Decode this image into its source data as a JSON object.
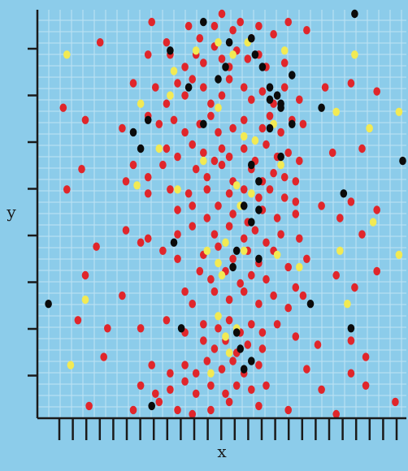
{
  "chart_data": {
    "type": "scatter",
    "title": "",
    "xlabel": "x",
    "ylabel": "y",
    "x_tick_count": 26,
    "y_tick_count": 8,
    "xlim": [
      0,
      100
    ],
    "ylim": [
      0,
      100
    ],
    "grid": true,
    "legend": "none",
    "colors": {
      "background": "#8cccea",
      "grid": "#bfe3f4",
      "axis": "#1a1a1a",
      "red": "#e0262b",
      "yellow": "#f2ea54",
      "black": "#0b0b0b"
    },
    "series": [
      {
        "color_key": "red",
        "points": [
          [
            31,
            97
          ],
          [
            35,
            92
          ],
          [
            41,
            96
          ],
          [
            44,
            93
          ],
          [
            48,
            96
          ],
          [
            50,
            99
          ],
          [
            53,
            95
          ],
          [
            55,
            97
          ],
          [
            58,
            93
          ],
          [
            60,
            96
          ],
          [
            64,
            94
          ],
          [
            68,
            97
          ],
          [
            73,
            95
          ],
          [
            17,
            92
          ],
          [
            30,
            89
          ],
          [
            36,
            89
          ],
          [
            40,
            86
          ],
          [
            43,
            89
          ],
          [
            45,
            87
          ],
          [
            48,
            91
          ],
          [
            50,
            88
          ],
          [
            52,
            86
          ],
          [
            54,
            90
          ],
          [
            57,
            88
          ],
          [
            60,
            89
          ],
          [
            62,
            86
          ],
          [
            67,
            87
          ],
          [
            26,
            82
          ],
          [
            32,
            81
          ],
          [
            35,
            77
          ],
          [
            38,
            82
          ],
          [
            40,
            79
          ],
          [
            42,
            83
          ],
          [
            45,
            81
          ],
          [
            47,
            77
          ],
          [
            50,
            79
          ],
          [
            52,
            83
          ],
          [
            56,
            81
          ],
          [
            58,
            78
          ],
          [
            61,
            80
          ],
          [
            64,
            77
          ],
          [
            67,
            81
          ],
          [
            71,
            78
          ],
          [
            78,
            81
          ],
          [
            85,
            82
          ],
          [
            92,
            80
          ],
          [
            7,
            76
          ],
          [
            13,
            73
          ],
          [
            23,
            71
          ],
          [
            30,
            74
          ],
          [
            33,
            72
          ],
          [
            37,
            73
          ],
          [
            40,
            70
          ],
          [
            44,
            72
          ],
          [
            47,
            74
          ],
          [
            49,
            70
          ],
          [
            53,
            71
          ],
          [
            56,
            73
          ],
          [
            61,
            71
          ],
          [
            63,
            74
          ],
          [
            66,
            70
          ],
          [
            69,
            73
          ],
          [
            72,
            72
          ],
          [
            35,
            66
          ],
          [
            38,
            64
          ],
          [
            42,
            67
          ],
          [
            45,
            65
          ],
          [
            48,
            63
          ],
          [
            50,
            66
          ],
          [
            52,
            64
          ],
          [
            56,
            66
          ],
          [
            59,
            63
          ],
          [
            62,
            67
          ],
          [
            65,
            64
          ],
          [
            68,
            65
          ],
          [
            71,
            63
          ],
          [
            80,
            65
          ],
          [
            88,
            66
          ],
          [
            12,
            61
          ],
          [
            26,
            62
          ],
          [
            30,
            59
          ],
          [
            34,
            62
          ],
          [
            43,
            61
          ],
          [
            46,
            59
          ],
          [
            50,
            62
          ],
          [
            53,
            58
          ],
          [
            58,
            61
          ],
          [
            61,
            58
          ],
          [
            64,
            60
          ],
          [
            67,
            59
          ],
          [
            70,
            58
          ],
          [
            8,
            56
          ],
          [
            24,
            58
          ],
          [
            30,
            55
          ],
          [
            36,
            56
          ],
          [
            41,
            55
          ],
          [
            46,
            56
          ],
          [
            52,
            55
          ],
          [
            56,
            56
          ],
          [
            60,
            54
          ],
          [
            63,
            56
          ],
          [
            67,
            54
          ],
          [
            70,
            53
          ],
          [
            38,
            51
          ],
          [
            42,
            52
          ],
          [
            46,
            49
          ],
          [
            49,
            52
          ],
          [
            53,
            50
          ],
          [
            57,
            48
          ],
          [
            61,
            51
          ],
          [
            65,
            49
          ],
          [
            70,
            50
          ],
          [
            77,
            52
          ],
          [
            82,
            49
          ],
          [
            85,
            53
          ],
          [
            92,
            51
          ],
          [
            24,
            46
          ],
          [
            30,
            44
          ],
          [
            38,
            45
          ],
          [
            42,
            47
          ],
          [
            48,
            45
          ],
          [
            52,
            47
          ],
          [
            56,
            44
          ],
          [
            59,
            46
          ],
          [
            62,
            43
          ],
          [
            66,
            45
          ],
          [
            71,
            44
          ],
          [
            88,
            45
          ],
          [
            16,
            42
          ],
          [
            28,
            43
          ],
          [
            34,
            41
          ],
          [
            38,
            39
          ],
          [
            45,
            40
          ],
          [
            49,
            42
          ],
          [
            53,
            39
          ],
          [
            57,
            41
          ],
          [
            60,
            38
          ],
          [
            64,
            41
          ],
          [
            68,
            37
          ],
          [
            73,
            39
          ],
          [
            13,
            35
          ],
          [
            44,
            36
          ],
          [
            47,
            34
          ],
          [
            51,
            36
          ],
          [
            55,
            33
          ],
          [
            58,
            35
          ],
          [
            62,
            34
          ],
          [
            70,
            32
          ],
          [
            81,
            35
          ],
          [
            86,
            32
          ],
          [
            92,
            36
          ],
          [
            23,
            30
          ],
          [
            40,
            31
          ],
          [
            42,
            28
          ],
          [
            48,
            31
          ],
          [
            52,
            29
          ],
          [
            56,
            31
          ],
          [
            60,
            28
          ],
          [
            64,
            30
          ],
          [
            68,
            27
          ],
          [
            72,
            30
          ],
          [
            11,
            24
          ],
          [
            19,
            22
          ],
          [
            28,
            22
          ],
          [
            35,
            24
          ],
          [
            40,
            21
          ],
          [
            45,
            23
          ],
          [
            49,
            22
          ],
          [
            52,
            24
          ],
          [
            55,
            21
          ],
          [
            58,
            23
          ],
          [
            61,
            21
          ],
          [
            65,
            23
          ],
          [
            70,
            20
          ],
          [
            45,
            19
          ],
          [
            48,
            17
          ],
          [
            51,
            19
          ],
          [
            54,
            16
          ],
          [
            57,
            18
          ],
          [
            61,
            17
          ],
          [
            76,
            18
          ],
          [
            85,
            19
          ],
          [
            89,
            15
          ],
          [
            18,
            15
          ],
          [
            31,
            13
          ],
          [
            36,
            11
          ],
          [
            40,
            13
          ],
          [
            43,
            11
          ],
          [
            46,
            14
          ],
          [
            50,
            12
          ],
          [
            53,
            14
          ],
          [
            56,
            11
          ],
          [
            60,
            13
          ],
          [
            73,
            12
          ],
          [
            85,
            11
          ],
          [
            28,
            8
          ],
          [
            32,
            6
          ],
          [
            36,
            7
          ],
          [
            40,
            9
          ],
          [
            43,
            6
          ],
          [
            47,
            8
          ],
          [
            51,
            6
          ],
          [
            54,
            8
          ],
          [
            58,
            7
          ],
          [
            62,
            8
          ],
          [
            77,
            7
          ],
          [
            89,
            8
          ],
          [
            14,
            3
          ],
          [
            26,
            2
          ],
          [
            33,
            4
          ],
          [
            38,
            2
          ],
          [
            42,
            1
          ],
          [
            47,
            2
          ],
          [
            52,
            4
          ],
          [
            60,
            3
          ],
          [
            68,
            2
          ],
          [
            81,
            1
          ],
          [
            97,
            4
          ]
        ]
      },
      {
        "color_key": "yellow",
        "points": [
          [
            8,
            89
          ],
          [
            37,
            85
          ],
          [
            43,
            90
          ],
          [
            49,
            92
          ],
          [
            53,
            89
          ],
          [
            57,
            92
          ],
          [
            67,
            90
          ],
          [
            86,
            89
          ],
          [
            28,
            77
          ],
          [
            36,
            79
          ],
          [
            81,
            75
          ],
          [
            90,
            71
          ],
          [
            98,
            75
          ],
          [
            49,
            76
          ],
          [
            56,
            69
          ],
          [
            64,
            72
          ],
          [
            33,
            66
          ],
          [
            45,
            63
          ],
          [
            59,
            68
          ],
          [
            66,
            62
          ],
          [
            27,
            57
          ],
          [
            38,
            56
          ],
          [
            54,
            57
          ],
          [
            58,
            55
          ],
          [
            55,
            52
          ],
          [
            91,
            48
          ],
          [
            46,
            41
          ],
          [
            51,
            43
          ],
          [
            49,
            38
          ],
          [
            50,
            35
          ],
          [
            56,
            41
          ],
          [
            65,
            40
          ],
          [
            71,
            37
          ],
          [
            82,
            41
          ],
          [
            98,
            40
          ],
          [
            13,
            29
          ],
          [
            84,
            28
          ],
          [
            49,
            25
          ],
          [
            51,
            20
          ],
          [
            54,
            22
          ],
          [
            9,
            13
          ],
          [
            47,
            11
          ],
          [
            52,
            16
          ]
        ]
      },
      {
        "color_key": "black",
        "points": [
          [
            86,
            99
          ],
          [
            36,
            90
          ],
          [
            45,
            97
          ],
          [
            52,
            92
          ],
          [
            58,
            93
          ],
          [
            59,
            89
          ],
          [
            51,
            86
          ],
          [
            61,
            86
          ],
          [
            69,
            84
          ],
          [
            49,
            83
          ],
          [
            41,
            81
          ],
          [
            63,
            78
          ],
          [
            65,
            79
          ],
          [
            66,
            77
          ],
          [
            63,
            81
          ],
          [
            66,
            76
          ],
          [
            77,
            76
          ],
          [
            69,
            72
          ],
          [
            63,
            71
          ],
          [
            26,
            70
          ],
          [
            30,
            73
          ],
          [
            45,
            72
          ],
          [
            28,
            66
          ],
          [
            99,
            63
          ],
          [
            66,
            64
          ],
          [
            58,
            62
          ],
          [
            60,
            58
          ],
          [
            83,
            55
          ],
          [
            56,
            52
          ],
          [
            60,
            51
          ],
          [
            58,
            48
          ],
          [
            37,
            43
          ],
          [
            54,
            41
          ],
          [
            60,
            39
          ],
          [
            53,
            37
          ],
          [
            3,
            28
          ],
          [
            74,
            28
          ],
          [
            39,
            22
          ],
          [
            85,
            22
          ],
          [
            54,
            21
          ],
          [
            55,
            17
          ],
          [
            58,
            14
          ],
          [
            56,
            12
          ],
          [
            31,
            3
          ]
        ]
      }
    ]
  }
}
